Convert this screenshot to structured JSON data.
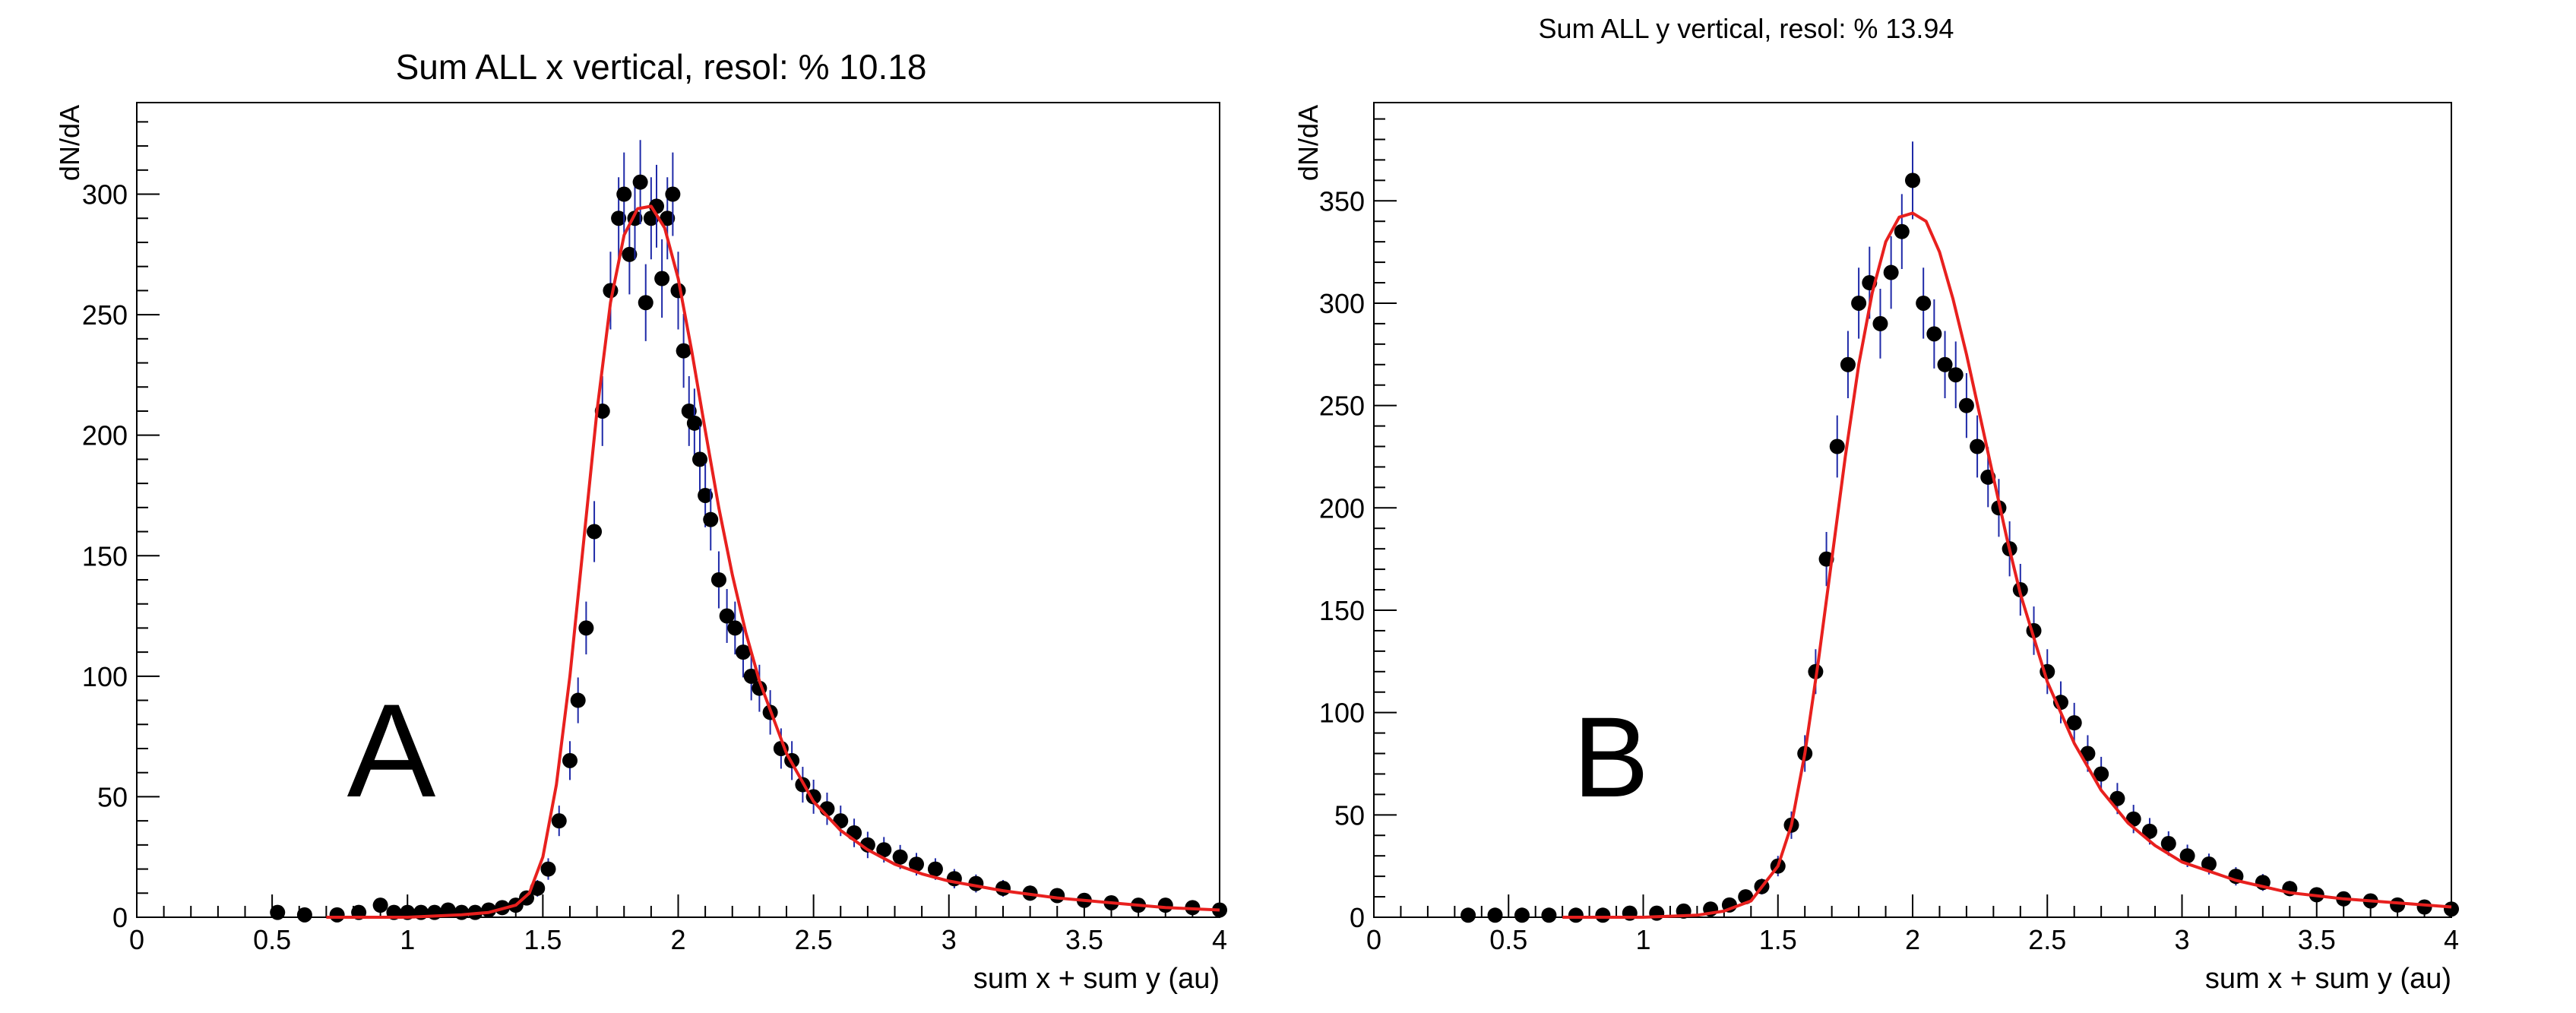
{
  "chart_data": [
    {
      "type": "scatter",
      "title": "Sum ALL x vertical, resol: % 10.18",
      "panel_letter": "A",
      "xlabel": "sum x + sum y (au)",
      "ylabel": "dN/dA",
      "xlim": [
        0,
        4
      ],
      "ylim": [
        0,
        338
      ],
      "xticks": [
        0,
        0.5,
        1,
        1.5,
        2,
        2.5,
        3,
        3.5,
        4
      ],
      "xtick_labels": [
        "0",
        "0.5",
        "1",
        "1.5",
        "2",
        "2.5",
        "3",
        "3.5",
        "4"
      ],
      "yticks": [
        0,
        50,
        100,
        150,
        200,
        250,
        300
      ],
      "ytick_labels": [
        "0",
        "50",
        "100",
        "150",
        "200",
        "250",
        "300"
      ],
      "grid": false,
      "series": [
        {
          "kind": "points-with-error-bars",
          "x": [
            0.52,
            0.62,
            0.74,
            0.82,
            0.9,
            0.95,
            1.0,
            1.05,
            1.1,
            1.15,
            1.2,
            1.25,
            1.3,
            1.35,
            1.4,
            1.44,
            1.48,
            1.52,
            1.56,
            1.6,
            1.63,
            1.66,
            1.69,
            1.72,
            1.75,
            1.78,
            1.8,
            1.82,
            1.84,
            1.86,
            1.88,
            1.9,
            1.92,
            1.94,
            1.96,
            1.98,
            2.0,
            2.02,
            2.04,
            2.06,
            2.08,
            2.1,
            2.12,
            2.15,
            2.18,
            2.21,
            2.24,
            2.27,
            2.3,
            2.34,
            2.38,
            2.42,
            2.46,
            2.5,
            2.55,
            2.6,
            2.65,
            2.7,
            2.76,
            2.82,
            2.88,
            2.95,
            3.02,
            3.1,
            3.2,
            3.3,
            3.4,
            3.5,
            3.6,
            3.7,
            3.8,
            3.9,
            4.0
          ],
          "y": [
            2,
            1,
            1,
            2,
            5,
            2,
            2,
            2,
            2,
            3,
            2,
            2,
            3,
            4,
            5,
            8,
            12,
            20,
            40,
            65,
            90,
            120,
            160,
            210,
            260,
            290,
            300,
            275,
            290,
            305,
            255,
            290,
            295,
            265,
            290,
            300,
            260,
            235,
            210,
            205,
            190,
            175,
            165,
            140,
            125,
            120,
            110,
            100,
            95,
            85,
            70,
            65,
            55,
            50,
            45,
            40,
            35,
            30,
            28,
            25,
            22,
            20,
            16,
            14,
            12,
            10,
            9,
            7,
            6,
            5,
            5,
            4,
            3
          ]
        },
        {
          "kind": "fit-curve",
          "x": [
            0.7,
            1.0,
            1.2,
            1.3,
            1.4,
            1.45,
            1.5,
            1.55,
            1.6,
            1.65,
            1.7,
            1.75,
            1.8,
            1.85,
            1.9,
            1.95,
            2.0,
            2.05,
            2.1,
            2.15,
            2.2,
            2.25,
            2.3,
            2.4,
            2.5,
            2.6,
            2.7,
            2.8,
            2.9,
            3.0,
            3.2,
            3.4,
            3.6,
            3.8,
            4.0
          ],
          "y": [
            0,
            0,
            1,
            2,
            5,
            10,
            25,
            55,
            100,
            155,
            210,
            255,
            283,
            294,
            295,
            286,
            265,
            235,
            202,
            170,
            142,
            118,
            98,
            68,
            48,
            36,
            28,
            22,
            18,
            15,
            11,
            8,
            6,
            4,
            3
          ]
        }
      ]
    },
    {
      "type": "scatter",
      "title": "Sum ALL y vertical, resol: % 13.94",
      "panel_letter": "B",
      "xlabel": "sum x + sum y (au)",
      "ylabel": "dN/dA",
      "xlim": [
        0,
        4
      ],
      "ylim": [
        0,
        398
      ],
      "xticks": [
        0,
        0.5,
        1,
        1.5,
        2,
        2.5,
        3,
        3.5,
        4
      ],
      "xtick_labels": [
        "0",
        "0.5",
        "1",
        "1.5",
        "2",
        "2.5",
        "3",
        "3.5",
        "4"
      ],
      "yticks": [
        0,
        50,
        100,
        150,
        200,
        250,
        300,
        350
      ],
      "ytick_labels": [
        "0",
        "50",
        "100",
        "150",
        "200",
        "250",
        "300",
        "350"
      ],
      "grid": false,
      "series": [
        {
          "kind": "points-with-error-bars",
          "x": [
            0.35,
            0.45,
            0.55,
            0.65,
            0.75,
            0.85,
            0.95,
            1.05,
            1.15,
            1.25,
            1.32,
            1.38,
            1.44,
            1.5,
            1.55,
            1.6,
            1.64,
            1.68,
            1.72,
            1.76,
            1.8,
            1.84,
            1.88,
            1.92,
            1.96,
            2.0,
            2.04,
            2.08,
            2.12,
            2.16,
            2.2,
            2.24,
            2.28,
            2.32,
            2.36,
            2.4,
            2.45,
            2.5,
            2.55,
            2.6,
            2.65,
            2.7,
            2.76,
            2.82,
            2.88,
            2.95,
            3.02,
            3.1,
            3.2,
            3.3,
            3.4,
            3.5,
            3.6,
            3.7,
            3.8,
            3.9,
            4.0
          ],
          "y": [
            1,
            1,
            1,
            1,
            1,
            1,
            2,
            2,
            3,
            4,
            6,
            10,
            15,
            25,
            45,
            80,
            120,
            175,
            230,
            270,
            300,
            310,
            290,
            315,
            335,
            360,
            300,
            285,
            270,
            265,
            250,
            230,
            215,
            200,
            180,
            160,
            140,
            120,
            105,
            95,
            80,
            70,
            58,
            48,
            42,
            36,
            30,
            26,
            20,
            17,
            14,
            11,
            9,
            8,
            6,
            5,
            4
          ]
        },
        {
          "kind": "fit-curve",
          "x": [
            0.7,
            1.0,
            1.2,
            1.3,
            1.4,
            1.5,
            1.55,
            1.6,
            1.65,
            1.7,
            1.75,
            1.8,
            1.85,
            1.9,
            1.95,
            2.0,
            2.05,
            2.1,
            2.15,
            2.2,
            2.25,
            2.3,
            2.35,
            2.4,
            2.5,
            2.6,
            2.7,
            2.8,
            2.9,
            3.0,
            3.2,
            3.4,
            3.6,
            3.8,
            4.0
          ],
          "y": [
            0,
            0,
            1,
            3,
            8,
            25,
            45,
            80,
            125,
            175,
            225,
            270,
            305,
            330,
            342,
            344,
            340,
            325,
            302,
            275,
            245,
            215,
            185,
            158,
            115,
            85,
            62,
            46,
            35,
            27,
            18,
            12,
            9,
            7,
            5
          ]
        }
      ]
    }
  ]
}
